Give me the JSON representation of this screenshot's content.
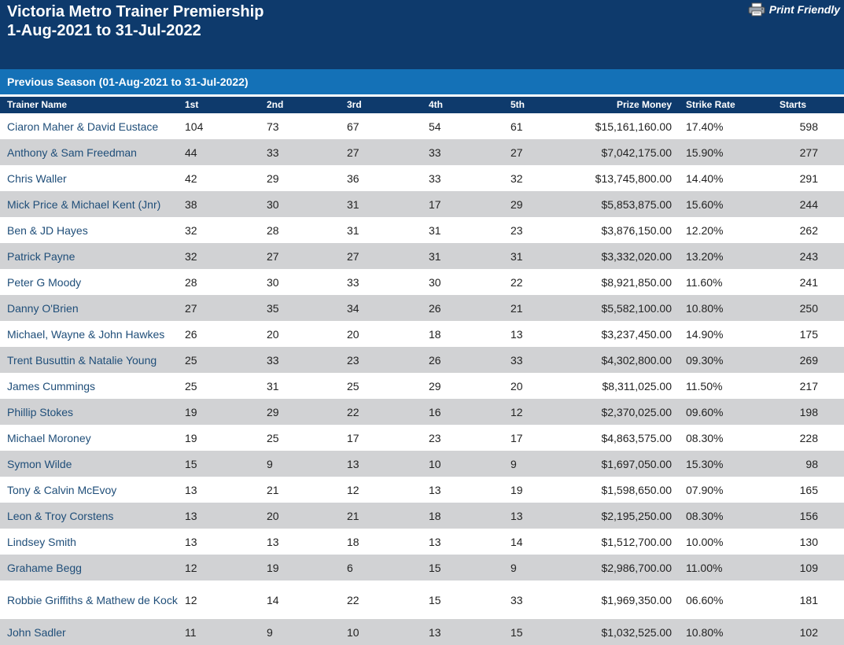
{
  "header": {
    "title_line1": "Victoria Metro Trainer Premiership",
    "title_line2": "1-Aug-2021 to 31-Jul-2022",
    "print_label": "Print Friendly",
    "print_icon": "printer-icon"
  },
  "season_bar": "Previous Season (01-Aug-2021 to 31-Jul-2022)",
  "columns": {
    "name": "Trainer Name",
    "first": "1st",
    "second": "2nd",
    "third": "3rd",
    "fourth": "4th",
    "fifth": "5th",
    "prize": "Prize Money",
    "strike": "Strike Rate",
    "starts": "Starts"
  },
  "rows": [
    {
      "name": "Ciaron Maher & David Eustace",
      "first": "104",
      "second": "73",
      "third": "67",
      "fourth": "54",
      "fifth": "61",
      "prize": "$15,161,160.00",
      "strike": "17.40%",
      "starts": "598"
    },
    {
      "name": "Anthony & Sam Freedman",
      "first": "44",
      "second": "33",
      "third": "27",
      "fourth": "33",
      "fifth": "27",
      "prize": "$7,042,175.00",
      "strike": "15.90%",
      "starts": "277"
    },
    {
      "name": "Chris Waller",
      "first": "42",
      "second": "29",
      "third": "36",
      "fourth": "33",
      "fifth": "32",
      "prize": "$13,745,800.00",
      "strike": "14.40%",
      "starts": "291"
    },
    {
      "name": "Mick Price & Michael Kent (Jnr)",
      "first": "38",
      "second": "30",
      "third": "31",
      "fourth": "17",
      "fifth": "29",
      "prize": "$5,853,875.00",
      "strike": "15.60%",
      "starts": "244"
    },
    {
      "name": "Ben & JD Hayes",
      "first": "32",
      "second": "28",
      "third": "31",
      "fourth": "31",
      "fifth": "23",
      "prize": "$3,876,150.00",
      "strike": "12.20%",
      "starts": "262"
    },
    {
      "name": "Patrick Payne",
      "first": "32",
      "second": "27",
      "third": "27",
      "fourth": "31",
      "fifth": "31",
      "prize": "$3,332,020.00",
      "strike": "13.20%",
      "starts": "243"
    },
    {
      "name": "Peter G Moody",
      "first": "28",
      "second": "30",
      "third": "33",
      "fourth": "30",
      "fifth": "22",
      "prize": "$8,921,850.00",
      "strike": "11.60%",
      "starts": "241"
    },
    {
      "name": "Danny O'Brien",
      "first": "27",
      "second": "35",
      "third": "34",
      "fourth": "26",
      "fifth": "21",
      "prize": "$5,582,100.00",
      "strike": "10.80%",
      "starts": "250"
    },
    {
      "name": "Michael, Wayne & John Hawkes",
      "first": "26",
      "second": "20",
      "third": "20",
      "fourth": "18",
      "fifth": "13",
      "prize": "$3,237,450.00",
      "strike": "14.90%",
      "starts": "175"
    },
    {
      "name": "Trent Busuttin & Natalie Young",
      "first": "25",
      "second": "33",
      "third": "23",
      "fourth": "26",
      "fifth": "33",
      "prize": "$4,302,800.00",
      "strike": "09.30%",
      "starts": "269"
    },
    {
      "name": "James Cummings",
      "first": "25",
      "second": "31",
      "third": "25",
      "fourth": "29",
      "fifth": "20",
      "prize": "$8,311,025.00",
      "strike": "11.50%",
      "starts": "217"
    },
    {
      "name": "Phillip Stokes",
      "first": "19",
      "second": "29",
      "third": "22",
      "fourth": "16",
      "fifth": "12",
      "prize": "$2,370,025.00",
      "strike": "09.60%",
      "starts": "198"
    },
    {
      "name": "Michael Moroney",
      "first": "19",
      "second": "25",
      "third": "17",
      "fourth": "23",
      "fifth": "17",
      "prize": "$4,863,575.00",
      "strike": "08.30%",
      "starts": "228"
    },
    {
      "name": "Symon Wilde",
      "first": "15",
      "second": "9",
      "third": "13",
      "fourth": "10",
      "fifth": "9",
      "prize": "$1,697,050.00",
      "strike": "15.30%",
      "starts": "98"
    },
    {
      "name": "Tony & Calvin McEvoy",
      "first": "13",
      "second": "21",
      "third": "12",
      "fourth": "13",
      "fifth": "19",
      "prize": "$1,598,650.00",
      "strike": "07.90%",
      "starts": "165"
    },
    {
      "name": "Leon & Troy Corstens",
      "first": "13",
      "second": "20",
      "third": "21",
      "fourth": "18",
      "fifth": "13",
      "prize": "$2,195,250.00",
      "strike": "08.30%",
      "starts": "156"
    },
    {
      "name": "Lindsey Smith",
      "first": "13",
      "second": "13",
      "third": "18",
      "fourth": "13",
      "fifth": "14",
      "prize": "$1,512,700.00",
      "strike": "10.00%",
      "starts": "130"
    },
    {
      "name": "Grahame Begg",
      "first": "12",
      "second": "19",
      "third": "6",
      "fourth": "15",
      "fifth": "9",
      "prize": "$2,986,700.00",
      "strike": "11.00%",
      "starts": "109"
    },
    {
      "name": "Robbie Griffiths & Mathew de Kock",
      "first": "12",
      "second": "14",
      "third": "22",
      "fourth": "15",
      "fifth": "33",
      "prize": "$1,969,350.00",
      "strike": "06.60%",
      "starts": "181"
    },
    {
      "name": "John Sadler",
      "first": "11",
      "second": "9",
      "third": "10",
      "fourth": "13",
      "fifth": "15",
      "prize": "$1,032,525.00",
      "strike": "10.80%",
      "starts": "102"
    }
  ]
}
